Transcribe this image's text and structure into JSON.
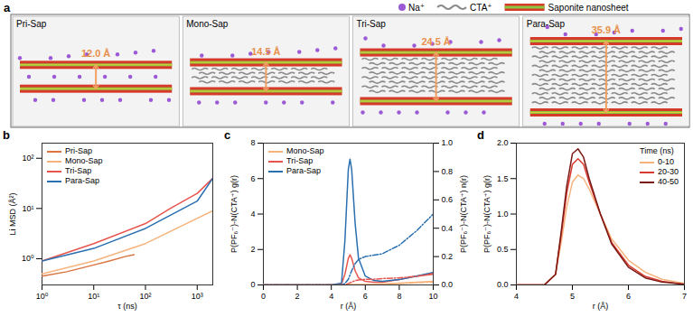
{
  "diagram": {
    "panel": "a",
    "legend": [
      {
        "label": "Na⁺"
      },
      {
        "label": "CTA⁺"
      },
      {
        "label": "Saponite nanosheet"
      }
    ],
    "boxes": [
      {
        "name": "Pri-Sap",
        "spacing": 12.0,
        "spacing_label": "12.0 Å"
      },
      {
        "name": "Mono-Sap",
        "spacing": 14.5,
        "spacing_label": "14.5 Å"
      },
      {
        "name": "Tri-Sap",
        "spacing": 24.5,
        "spacing_label": "24.5 Å"
      },
      {
        "name": "Para-Sap",
        "spacing": 35.9,
        "spacing_label": "35.9 Å"
      }
    ]
  },
  "chart_data": [
    {
      "panel": "b",
      "type": "line",
      "log": true,
      "xlabel": "τ (ns)",
      "ylabel": "Li MSD (Å²)",
      "xlim": [
        1,
        2000
      ],
      "ylim": [
        0.3,
        200
      ],
      "xticks": [
        {
          "value": 1,
          "label": "10⁰"
        },
        {
          "value": 10,
          "label": "10¹"
        },
        {
          "value": 100,
          "label": "10²"
        },
        {
          "value": 1000,
          "label": "10³"
        }
      ],
      "yticks": [
        {
          "value": 1,
          "label": "10⁰"
        },
        {
          "value": 10,
          "label": "10¹"
        },
        {
          "value": 100,
          "label": "10²"
        }
      ],
      "legend": "top-left",
      "series": [
        {
          "name": "Pri-Sap",
          "color": "#d9743f",
          "x": [
            1,
            3,
            10,
            20,
            40,
            60
          ],
          "values": [
            0.45,
            0.55,
            0.75,
            0.9,
            1.1,
            1.2
          ]
        },
        {
          "name": "Mono-Sap",
          "color": "#f5b47e",
          "x": [
            1,
            10,
            100,
            500,
            2000
          ],
          "values": [
            0.5,
            0.9,
            2,
            4.5,
            9
          ]
        },
        {
          "name": "Tri-Sap",
          "color": "#e8554e",
          "x": [
            1,
            10,
            100,
            300,
            1000,
            2000
          ],
          "values": [
            0.9,
            2,
            5,
            10,
            20,
            40
          ]
        },
        {
          "name": "Para-Sap",
          "color": "#2a6fb0",
          "x": [
            1,
            10,
            100,
            1000,
            2000
          ],
          "values": [
            0.9,
            1.6,
            4,
            14,
            40
          ]
        }
      ]
    },
    {
      "panel": "c",
      "type": "line",
      "xlabel": "r (Å)",
      "ylabel": "P(PF₆⁻)-N(CTA⁺) g(r)",
      "y2label": "P(PF₆⁻)-N(CTA⁺) n(r)",
      "xlim": [
        0,
        10
      ],
      "ylim": [
        0,
        8
      ],
      "y2lim": [
        0,
        1
      ],
      "xticks": [
        0,
        2,
        4,
        6,
        8,
        10
      ],
      "yticks": [
        0,
        2,
        4,
        6,
        8
      ],
      "y2ticks": [
        {
          "value": 0,
          "label": "0.0"
        },
        0.2,
        0.4,
        0.6,
        0.8,
        {
          "value": 1,
          "label": "1.0"
        }
      ],
      "legend": "top-left",
      "x": [
        0,
        4,
        4.6,
        4.8,
        5.0,
        5.1,
        5.2,
        5.4,
        5.6,
        6.0,
        6.5,
        7,
        8,
        9,
        10
      ],
      "series": [
        {
          "name": "Mono-Sap",
          "color": "#f5b47e",
          "line_style": "solid",
          "values": [
            0,
            0,
            0,
            0,
            0.02,
            0.03,
            0.03,
            0.02,
            0.02,
            0.02,
            0.03,
            0.05,
            0.1,
            0.15,
            0.2
          ]
        },
        {
          "name": "Tri-Sap",
          "color": "#e8554e",
          "line_style": "solid",
          "values": [
            0,
            0,
            0.05,
            0.6,
            1.5,
            1.7,
            1.5,
            0.8,
            0.4,
            0.2,
            0.15,
            0.15,
            0.3,
            0.5,
            0.6
          ]
        },
        {
          "name": "Para-Sap",
          "color": "#2a6fb0",
          "line_style": "solid",
          "values": [
            0,
            0,
            0.1,
            2.5,
            6.5,
            7.1,
            6.5,
            3.5,
            1.5,
            0.5,
            0.25,
            0.2,
            0.3,
            0.5,
            0.7
          ]
        },
        {
          "name": "Mono-Sap",
          "color": "#f5b47e",
          "line_style": "dashdot",
          "axis": "y2",
          "values": [
            0,
            0,
            0,
            0,
            0,
            0,
            0,
            0,
            0,
            0.002,
            0.004,
            0.006,
            0.01,
            0.015,
            0.02
          ]
        },
        {
          "name": "Tri-Sap",
          "color": "#e8554e",
          "line_style": "dashdot",
          "axis": "y2",
          "values": [
            0,
            0,
            0,
            0,
            0.01,
            0.015,
            0.02,
            0.03,
            0.035,
            0.04,
            0.04,
            0.045,
            0.05,
            0.06,
            0.08
          ]
        },
        {
          "name": "Para-Sap",
          "color": "#2a6fb0",
          "line_style": "dashdot",
          "axis": "y2",
          "values": [
            0,
            0,
            0,
            0.01,
            0.04,
            0.07,
            0.1,
            0.15,
            0.18,
            0.2,
            0.21,
            0.22,
            0.28,
            0.38,
            0.5
          ]
        }
      ]
    },
    {
      "panel": "d",
      "type": "line",
      "xlabel": "r (Å)",
      "ylabel": "P(PF₆⁻)-N(CTA⁺) g(r)",
      "xlim": [
        4,
        7
      ],
      "ylim": [
        0,
        2
      ],
      "xticks": [
        4,
        5,
        6,
        7
      ],
      "yticks": [
        {
          "value": 0,
          "label": "0.0"
        },
        0.5,
        {
          "value": 1,
          "label": "1.0"
        },
        1.5,
        {
          "value": 2,
          "label": "2.0"
        }
      ],
      "legend": "top-right",
      "legend_title": "Time (ns)",
      "x": [
        4,
        4.5,
        4.7,
        4.8,
        4.9,
        5.0,
        5.1,
        5.2,
        5.3,
        5.5,
        5.7,
        6.0,
        6.3,
        6.6,
        7.0
      ],
      "series": [
        {
          "name": "0-10",
          "color": "#f5b47e",
          "values": [
            0,
            0,
            0.15,
            0.6,
            1.1,
            1.45,
            1.55,
            1.5,
            1.35,
            1.0,
            0.65,
            0.35,
            0.18,
            0.08,
            0.02
          ]
        },
        {
          "name": "20-30",
          "color": "#d83a30",
          "values": [
            0,
            0,
            0.15,
            0.7,
            1.3,
            1.7,
            1.78,
            1.7,
            1.45,
            1.0,
            0.6,
            0.28,
            0.12,
            0.05,
            0.01
          ]
        },
        {
          "name": "40-50",
          "color": "#7a1a14",
          "values": [
            0,
            0,
            0.15,
            0.75,
            1.4,
            1.85,
            1.92,
            1.8,
            1.5,
            1.0,
            0.58,
            0.25,
            0.1,
            0.04,
            0.01
          ]
        }
      ]
    }
  ]
}
